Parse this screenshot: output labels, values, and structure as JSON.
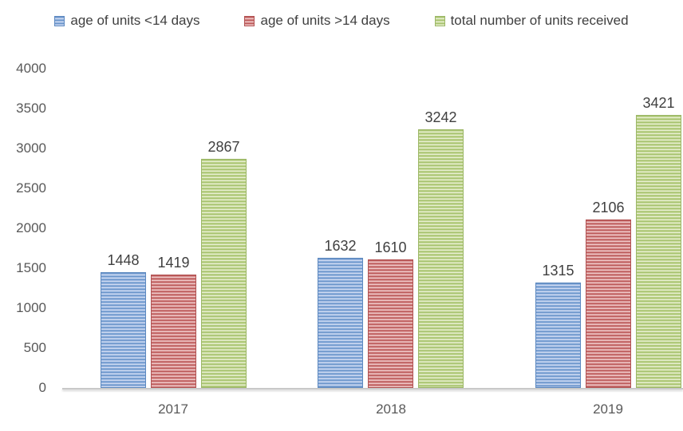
{
  "chart_data": {
    "type": "bar",
    "title": "",
    "categories": [
      "2017",
      "2018",
      "2019"
    ],
    "series": [
      {
        "name": "age of units <14 days",
        "color": "#84a7d6",
        "values": [
          1448,
          1632,
          1315
        ]
      },
      {
        "name": "age of units >14 days",
        "color": "#cf8080",
        "values": [
          1419,
          1610,
          2106
        ]
      },
      {
        "name": "total number of units received",
        "color": "#bcd189",
        "values": [
          2867,
          3242,
          3421
        ]
      }
    ],
    "ylim": [
      0,
      4000
    ],
    "yticks": [
      0,
      500,
      1000,
      1500,
      2000,
      2500,
      3000,
      3500,
      4000
    ],
    "grid": false,
    "legend_position": "top",
    "data_labels": true,
    "bar_pattern": "horizontal-stripes"
  },
  "colors": {
    "data_label_text": "#404040",
    "axis_text": "#595959",
    "legend_text": "#3f3f3f",
    "axis_line": "#c8c8c8",
    "background": "#ffffff"
  }
}
